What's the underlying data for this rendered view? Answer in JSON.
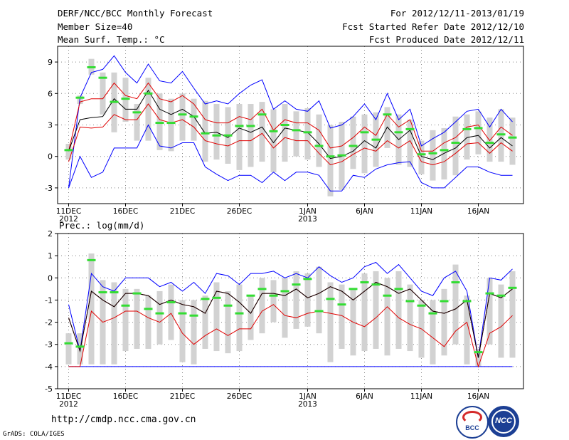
{
  "header": {
    "title": "DERF/NCC/BCC Monthly Forecast",
    "member_size": "Member Size=40",
    "variable": "Mean Surf. Temp.: °C",
    "period": "For 2012/12/11-2013/01/19",
    "started": "Fcst Started Refer Date 2012/12/10",
    "produced": "Fcst Produced Date 2012/12/11"
  },
  "footer": {
    "url": "http://cmdp.ncc.cma.gov.cn",
    "grads": "GrADS: COLA/IGES",
    "logo_bcc": "BCC",
    "logo_ncc": "NCC"
  },
  "colors": {
    "max": "#0000ff",
    "min": "#0000ff",
    "mean": "#000000",
    "band": "#e00000",
    "member": "#d2d2d2",
    "median": "#33dd33"
  },
  "chart_data": [
    {
      "type": "box",
      "title": "Mean Surf. Temp.: °C",
      "ylim": [
        -4.5,
        10.5
      ],
      "yticks": [
        -3,
        0,
        3,
        6,
        9
      ],
      "x_days": 40,
      "xticks": [
        {
          "day": 0,
          "label": "11DEC",
          "year": "2012"
        },
        {
          "day": 5,
          "label": "16DEC",
          "year": ""
        },
        {
          "day": 10,
          "label": "21DEC",
          "year": ""
        },
        {
          "day": 15,
          "label": "26DEC",
          "year": ""
        },
        {
          "day": 21,
          "label": "1JAN",
          "year": "2013"
        },
        {
          "day": 26,
          "label": "6JAN",
          "year": ""
        },
        {
          "day": 31,
          "label": "11JAN",
          "year": ""
        },
        {
          "day": 36,
          "label": "16JAN",
          "year": ""
        }
      ],
      "max": [
        -3.0,
        5.6,
        8.0,
        8.3,
        9.6,
        8.0,
        7.0,
        8.8,
        7.2,
        7.0,
        8.1,
        6.5,
        5.0,
        5.3,
        5.0,
        6.0,
        6.8,
        7.3,
        4.5,
        5.3,
        4.5,
        4.3,
        5.3,
        2.7,
        3.0,
        3.8,
        5.0,
        3.5,
        6.0,
        3.5,
        4.5,
        1.0,
        1.7,
        2.3,
        3.3,
        4.3,
        4.5,
        2.8,
        4.5,
        3.3
      ],
      "min": [
        -3.0,
        0.0,
        -2.0,
        -1.5,
        0.8,
        0.8,
        0.8,
        3.0,
        1.0,
        0.8,
        1.3,
        1.3,
        -1.0,
        -1.7,
        -2.3,
        -1.8,
        -1.8,
        -2.5,
        -1.5,
        -2.3,
        -1.5,
        -1.5,
        -1.8,
        -3.3,
        -3.3,
        -1.8,
        -2.0,
        -1.2,
        -0.8,
        -0.6,
        -0.5,
        -2.5,
        -3.0,
        -3.0,
        -2.0,
        -1.0,
        -1.0,
        -1.5,
        -1.8,
        -1.8
      ],
      "mean": [
        0.5,
        3.5,
        3.7,
        3.8,
        5.5,
        4.5,
        4.5,
        6.3,
        4.5,
        4.0,
        4.5,
        3.8,
        2.2,
        2.3,
        1.8,
        2.7,
        2.3,
        2.8,
        1.3,
        2.7,
        2.5,
        2.3,
        1.2,
        -0.2,
        0.0,
        0.5,
        1.5,
        0.8,
        2.8,
        1.6,
        2.5,
        0.0,
        -0.3,
        0.3,
        0.8,
        1.8,
        2.0,
        0.8,
        1.8,
        1.0
      ],
      "upper": [
        0.5,
        5.2,
        5.5,
        5.5,
        7.0,
        5.8,
        5.5,
        7.0,
        5.5,
        5.2,
        5.8,
        5.0,
        3.5,
        3.2,
        3.2,
        3.8,
        3.5,
        4.5,
        2.5,
        3.5,
        3.2,
        3.2,
        2.5,
        0.8,
        1.0,
        1.8,
        2.8,
        2.0,
        4.0,
        2.8,
        3.5,
        0.5,
        0.5,
        1.3,
        1.8,
        2.8,
        3.0,
        1.5,
        2.8,
        2.0
      ],
      "lower": [
        -0.5,
        2.8,
        2.7,
        2.8,
        4.0,
        3.5,
        3.5,
        5.0,
        3.5,
        3.2,
        3.5,
        2.8,
        1.5,
        1.2,
        1.0,
        1.5,
        1.5,
        2.2,
        0.8,
        1.8,
        1.5,
        1.5,
        0.3,
        -0.8,
        -0.5,
        0.2,
        0.8,
        0.5,
        1.5,
        0.8,
        1.5,
        -0.5,
        -0.8,
        -0.5,
        0.3,
        1.2,
        1.3,
        0.3,
        1.3,
        0.5
      ],
      "median": [
        0.6,
        5.6,
        8.5,
        7.5,
        5.2,
        5.5,
        4.2,
        6.0,
        3.2,
        3.2,
        4.0,
        3.8,
        2.2,
        2.0,
        2.0,
        2.9,
        2.9,
        4.0,
        2.4,
        3.0,
        2.5,
        2.3,
        1.0,
        0.0,
        0.1,
        1.0,
        2.3,
        1.6,
        4.0,
        2.3,
        2.6,
        0.2,
        0.3,
        0.6,
        1.3,
        2.6,
        2.7,
        1.3,
        2.1,
        1.8
      ],
      "box_top": [
        1.2,
        5.8,
        9.3,
        8.0,
        8.0,
        7.5,
        5.0,
        7.5,
        6.0,
        5.5,
        6.0,
        5.5,
        5.3,
        5.0,
        4.7,
        5.0,
        5.0,
        5.2,
        4.5,
        5.0,
        4.3,
        4.6,
        4.0,
        3.0,
        3.3,
        3.8,
        4.0,
        4.2,
        4.7,
        4.0,
        3.5,
        1.5,
        2.5,
        2.7,
        3.8,
        4.0,
        4.3,
        3.7,
        4.5,
        3.7
      ],
      "box_bottom": [
        -0.3,
        5.0,
        7.8,
        4.0,
        2.3,
        3.3,
        1.5,
        1.5,
        0.6,
        0.5,
        1.5,
        1.5,
        -0.5,
        -0.3,
        -0.7,
        -1.3,
        -1.0,
        -0.5,
        -1.5,
        -0.5,
        0.0,
        -0.3,
        -1.0,
        -3.8,
        -3.2,
        -1.2,
        -1.6,
        -1.0,
        0.8,
        -0.8,
        -1.0,
        -1.7,
        -2.3,
        -2.2,
        -1.8,
        -0.3,
        0.2,
        -0.5,
        -0.5,
        -0.8
      ]
    },
    {
      "type": "box",
      "title": "Prec.: log(mm/d)",
      "ylim": [
        -5,
        2
      ],
      "yticks": [
        -5,
        -4,
        -3,
        -2,
        -1,
        0,
        1,
        2
      ],
      "x_days": 40,
      "xticks": [
        {
          "day": 0,
          "label": "11DEC",
          "year": "2012"
        },
        {
          "day": 5,
          "label": "16DEC",
          "year": ""
        },
        {
          "day": 10,
          "label": "21DEC",
          "year": ""
        },
        {
          "day": 15,
          "label": "26DEC",
          "year": ""
        },
        {
          "day": 21,
          "label": "1JAN",
          "year": "2013"
        },
        {
          "day": 26,
          "label": "6JAN",
          "year": ""
        },
        {
          "day": 31,
          "label": "11JAN",
          "year": ""
        },
        {
          "day": 36,
          "label": "16JAN",
          "year": ""
        }
      ],
      "max": [
        -1.2,
        -3.3,
        0.2,
        -0.4,
        -0.6,
        0.0,
        0.0,
        0.0,
        -0.4,
        -0.2,
        -0.6,
        -0.2,
        -0.7,
        0.2,
        0.1,
        -0.3,
        0.2,
        0.2,
        0.3,
        0.0,
        0.2,
        0.0,
        0.5,
        0.1,
        -0.2,
        0.0,
        0.5,
        0.7,
        0.2,
        0.6,
        0.0,
        -0.6,
        -0.8,
        0.0,
        0.3,
        -0.6,
        -3.6,
        0.0,
        -0.1,
        0.4
      ],
      "min": [
        -4.0,
        -4.0,
        -4.0,
        -4.0,
        -4.0,
        -4.0,
        -4.0,
        -4.0,
        -4.0,
        -4.0,
        -4.0,
        -4.0,
        -4.0,
        -4.0,
        -4.0,
        -4.0,
        -4.0,
        -4.0,
        -4.0,
        -4.0,
        -4.0,
        -4.0,
        -4.0,
        -4.0,
        -4.0,
        -4.0,
        -4.0,
        -4.0,
        -4.0,
        -4.0,
        -4.0,
        -4.0,
        -4.0,
        -4.0,
        -4.0,
        -4.0,
        -4.0,
        -4.0,
        -4.0,
        -4.0
      ],
      "mean": [
        -1.8,
        -3.3,
        -0.6,
        -1.0,
        -1.3,
        -0.7,
        -0.7,
        -0.8,
        -1.2,
        -1.0,
        -1.2,
        -1.3,
        -1.6,
        -0.6,
        -0.7,
        -1.1,
        -1.6,
        -0.7,
        -0.7,
        -0.8,
        -0.5,
        -0.9,
        -0.7,
        -0.4,
        -0.6,
        -1.0,
        -0.6,
        -0.2,
        -0.4,
        -0.7,
        -0.5,
        -1.0,
        -1.5,
        -1.6,
        -1.4,
        -1.0,
        -3.6,
        -0.7,
        -0.9,
        -0.5
      ],
      "upper": [
        -1.8,
        -3.3,
        -0.6,
        -1.0,
        -1.3,
        -0.7,
        -0.7,
        -0.8,
        -1.2,
        -1.0,
        -1.2,
        -1.3,
        -1.6,
        -0.6,
        -0.7,
        -1.1,
        -1.6,
        -0.7,
        -0.7,
        -0.8,
        -0.5,
        -0.9,
        -0.7,
        -0.4,
        -0.6,
        -1.0,
        -0.6,
        -0.2,
        -0.4,
        -0.7,
        -0.5,
        -1.0,
        -1.5,
        -1.6,
        -1.4,
        -1.0,
        -3.6,
        -0.7,
        -0.9,
        -0.5
      ],
      "lower": [
        -4.0,
        -4.0,
        -1.5,
        -2.0,
        -1.8,
        -1.5,
        -1.5,
        -1.8,
        -2.0,
        -1.6,
        -2.5,
        -3.0,
        -2.6,
        -2.3,
        -2.6,
        -2.3,
        -2.3,
        -1.5,
        -1.2,
        -1.7,
        -1.8,
        -1.6,
        -1.5,
        -1.6,
        -1.7,
        -2.0,
        -2.2,
        -1.8,
        -1.3,
        -1.8,
        -2.1,
        -2.3,
        -2.7,
        -3.1,
        -2.4,
        -2.0,
        -4.0,
        -2.5,
        -2.2,
        -1.7
      ],
      "median": [
        -2.95,
        -3.1,
        0.8,
        -0.65,
        -0.65,
        -1.25,
        -0.7,
        -1.4,
        -1.6,
        -1.1,
        -1.6,
        -1.7,
        -0.95,
        -0.9,
        -1.25,
        -1.6,
        -0.8,
        -0.5,
        -0.8,
        -0.6,
        -0.3,
        -0.05,
        -1.5,
        -0.95,
        -1.2,
        -0.5,
        -0.2,
        -0.3,
        -0.8,
        -0.5,
        -1.05,
        -1.25,
        -1.6,
        -1.05,
        -0.2,
        -1.05,
        -3.35,
        -0.7,
        -0.8,
        -0.45
      ],
      "box_top": [
        -2.5,
        -2.5,
        1.1,
        -0.1,
        -0.2,
        -0.5,
        -0.5,
        -0.8,
        -0.6,
        -0.3,
        -1.0,
        -1.0,
        -0.8,
        -0.2,
        -0.6,
        -0.3,
        -0.8,
        0.0,
        -0.1,
        0.0,
        0.3,
        0.2,
        0.5,
        -0.2,
        -0.3,
        -0.5,
        0.2,
        0.3,
        0.0,
        0.3,
        -0.3,
        -1.0,
        -1.0,
        -0.5,
        0.6,
        -0.8,
        -3.2,
        0.0,
        -0.3,
        0.3
      ],
      "box_bottom": [
        -3.9,
        -3.9,
        -3.9,
        -3.9,
        -3.9,
        -3.3,
        -3.2,
        -3.2,
        -3.0,
        -2.8,
        -3.8,
        -3.9,
        -3.2,
        -3.3,
        -3.4,
        -3.3,
        -2.8,
        -2.5,
        -2.0,
        -2.7,
        -2.3,
        -2.2,
        -2.5,
        -3.8,
        -3.2,
        -3.5,
        -3.3,
        -3.2,
        -3.5,
        -3.2,
        -3.3,
        -3.6,
        -3.9,
        -3.5,
        -3.0,
        -3.9,
        -4.0,
        -3.0,
        -3.6,
        -3.6
      ]
    }
  ]
}
